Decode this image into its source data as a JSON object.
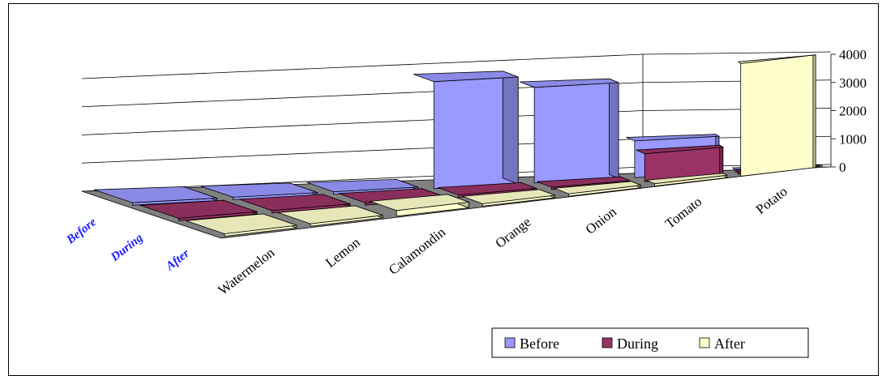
{
  "chart_data": {
    "type": "bar",
    "subtype": "3d-column",
    "categories": [
      "Watermelon",
      "Lemon",
      "Calamondin",
      "Orange",
      "Onion",
      "Tomato",
      "Potato"
    ],
    "series": [
      {
        "name": "Before",
        "values": [
          0,
          0,
          0,
          3800,
          3400,
          1300,
          0
        ]
      },
      {
        "name": "During",
        "values": [
          0,
          0,
          0,
          0,
          0,
          1000,
          0
        ]
      },
      {
        "name": "After",
        "values": [
          0,
          0,
          200,
          0,
          0,
          0,
          4000
        ]
      }
    ],
    "depth_labels": [
      "Before",
      "During",
      "After"
    ],
    "y_ticks": [
      "0",
      "1000",
      "2000",
      "3000",
      "4000"
    ],
    "ylim": [
      0,
      4000
    ],
    "grid": true,
    "legend_position": "bottom-right",
    "colors": {
      "Before": "#9999ff",
      "During": "#993366",
      "After": "#ffffcc",
      "floor": "#808080"
    }
  }
}
